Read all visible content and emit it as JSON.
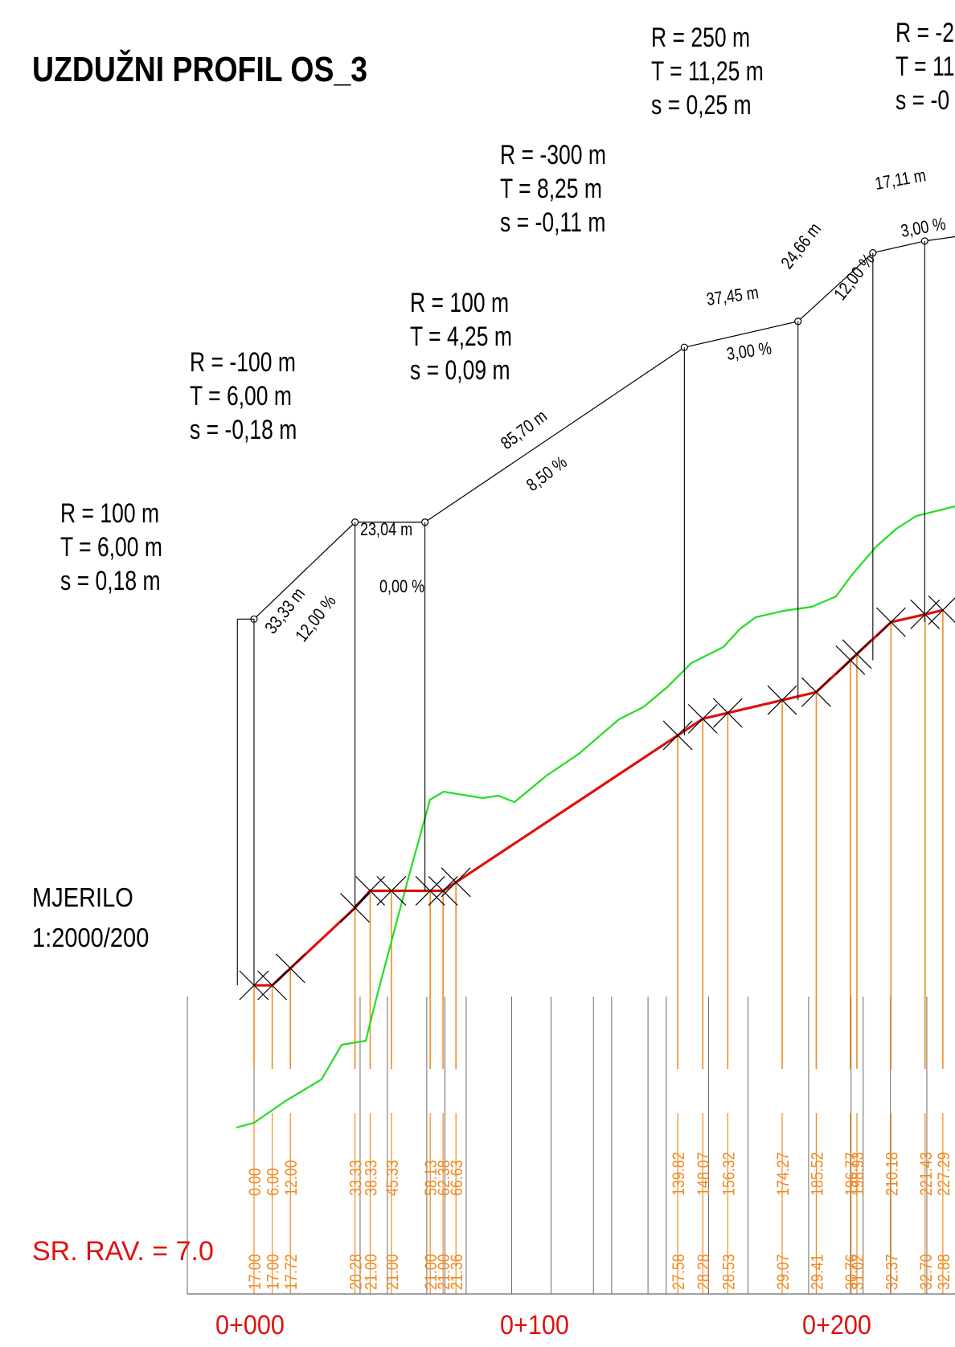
{
  "title": "UZDUŽNI PROFIL    OS_3",
  "scale_label": "MJERILO",
  "scale_value": "1:2000/200",
  "avg_label": "SR. RAV. = 7.0",
  "chainages": [
    "0+000",
    "0+100",
    "0+200"
  ],
  "curves": [
    {
      "R": "R = 100  m",
      "T": "T = 6,00 m",
      "s": "s = 0,18 m"
    },
    {
      "R": "R = -100  m",
      "T": "T = 6,00 m",
      "s": "s = -0,18 m"
    },
    {
      "R": "R = 100  m",
      "T": "T = 4,25 m",
      "s": "s = 0,09 m"
    },
    {
      "R": "R = -300  m",
      "T": "T = 8,25 m",
      "s": "s = -0,11 m"
    },
    {
      "R": "R = 250  m",
      "T": "T = 11,25 m",
      "s": "s = 0,25 m"
    },
    {
      "R": "R = -2",
      "T": "T = 11",
      "s": "s = -0"
    }
  ],
  "segments": [
    {
      "length": "33,33 m",
      "grade": "12,00 %"
    },
    {
      "length": "23,04 m",
      "grade": "0,00 %"
    },
    {
      "length": "85,70 m",
      "grade": "8,50 %"
    },
    {
      "length": "37,45 m",
      "grade": "3,00 %"
    },
    {
      "length": "24,66 m",
      "grade": "12,00 %"
    },
    {
      "length": "17,11 m",
      "grade": "3,00 %"
    }
  ],
  "stations": [
    "0.00",
    "6.00",
    "12.00",
    "33.33",
    "38.33",
    "45.33",
    "58.13",
    "62.38",
    "66.63",
    "139.82",
    "148.07",
    "156.32",
    "174.27",
    "185.52",
    "196.77",
    "198.93",
    "210.18",
    "221.43",
    "227.29"
  ],
  "elevations": [
    "17.00",
    "17.00",
    "17.72",
    "20.28",
    "21.00",
    "21.00",
    "21.00",
    "21.00",
    "21.36",
    "27.58",
    "28.28",
    "28.53",
    "29.07",
    "29.41",
    "30.76",
    "31.02",
    "32.37",
    "32.70",
    "32.88"
  ],
  "colors": {
    "grade_line": "#e01010",
    "terrain_line": "#22dd22",
    "station_lines": "#f08a24",
    "annotation": "#000000"
  }
}
